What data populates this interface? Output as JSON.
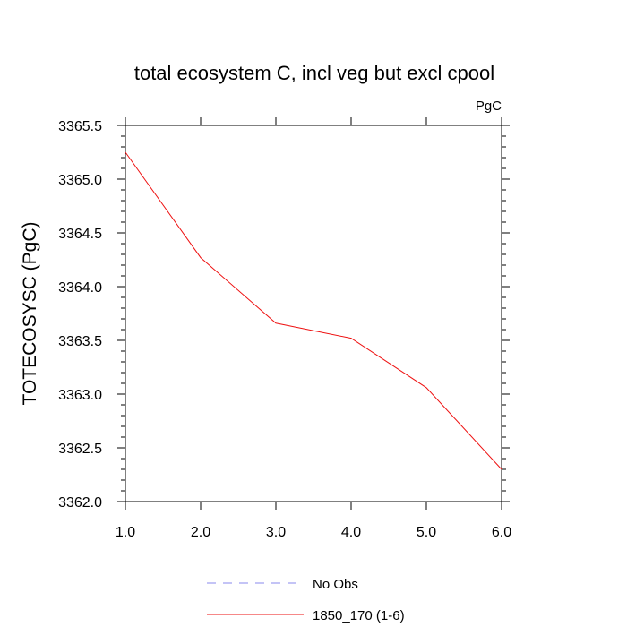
{
  "chart_data": {
    "type": "line",
    "title": "total ecosystem C, incl veg but excl cpool",
    "units": "PgC",
    "xlabel": "",
    "ylabel": "TOTECOSYSC  (PgC)",
    "xlim": [
      1.0,
      6.0
    ],
    "ylim": [
      3362.0,
      3365.5
    ],
    "x_ticks": [
      "1.0",
      "2.0",
      "3.0",
      "4.0",
      "5.0",
      "6.0"
    ],
    "y_ticks": [
      "3362.0",
      "3362.5",
      "3363.0",
      "3363.5",
      "3364.0",
      "3364.5",
      "3365.0",
      "3365.5"
    ],
    "x": [
      1,
      2,
      3,
      4,
      5,
      6
    ],
    "series": [
      {
        "name": "1850_170 (1-6)",
        "color": "#ee1111",
        "style": "solid",
        "values": [
          3365.25,
          3364.27,
          3363.66,
          3363.52,
          3363.06,
          3362.3
        ]
      }
    ],
    "legend": [
      {
        "label": "No Obs",
        "color": "#8888ee",
        "style": "dashed"
      },
      {
        "label": "1850_170 (1-6)",
        "color": "#ee1111",
        "style": "solid"
      }
    ]
  }
}
